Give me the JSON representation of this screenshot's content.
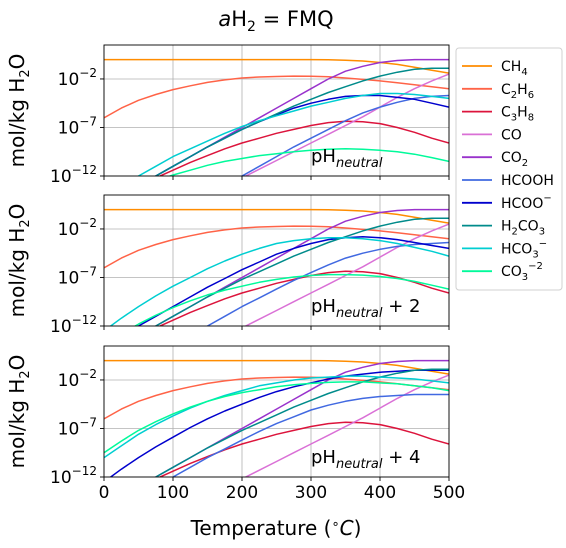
{
  "figure": {
    "title": "aH2 = FMQ",
    "title_parts": {
      "italic": "a",
      "main": "H",
      "sub": "2",
      "rest": " = FMQ"
    },
    "xlabel": "Temperature (°C)",
    "ylabel": "mol/kg H2O"
  },
  "chart_data": [
    {
      "type": "line",
      "annotation": "pHneutral",
      "xlim": [
        0,
        500
      ],
      "ylim_log10": [
        -12,
        1.5
      ],
      "yscale": "log",
      "x_ticks": [
        0,
        100,
        200,
        300,
        400,
        500
      ],
      "y_ticks_log10": [
        -12,
        -7,
        -2
      ],
      "grid": true,
      "x": [
        0,
        25,
        50,
        75,
        100,
        125,
        150,
        175,
        200,
        225,
        250,
        275,
        300,
        325,
        350,
        375,
        400,
        425,
        450,
        475,
        500
      ],
      "series": [
        {
          "name": "CH4",
          "color": "#ff8c00",
          "log10_values": [
            0,
            0,
            0,
            0,
            0,
            0,
            0,
            0,
            0,
            0,
            0,
            0,
            0,
            -0.03,
            -0.07,
            -0.15,
            -0.3,
            -0.5,
            -0.8,
            -1.1,
            -1.4
          ]
        },
        {
          "name": "C2H6",
          "color": "#ff6347",
          "log10_values": [
            -6,
            -5.0,
            -4.2,
            -3.6,
            -3.1,
            -2.7,
            -2.35,
            -2.1,
            -1.9,
            -1.8,
            -1.75,
            -1.7,
            -1.72,
            -1.78,
            -1.9,
            -2.05,
            -2.2,
            -2.4,
            -2.6,
            -2.8,
            -3.0
          ]
        },
        {
          "name": "C3H8",
          "color": "#dc143c",
          "log10_values": [
            -15,
            -14,
            -13,
            -12.2,
            -11.4,
            -10.6,
            -9.9,
            -9.2,
            -8.6,
            -8.1,
            -7.6,
            -7.2,
            -6.8,
            -6.5,
            -6.35,
            -6.4,
            -6.6,
            -7.0,
            -7.5,
            -8.1,
            -8.6
          ]
        },
        {
          "name": "CO",
          "color": "#da70d6",
          "log10_values": [
            -20,
            -19,
            -18,
            -17,
            -16,
            -15,
            -14,
            -13.1,
            -12.2,
            -11.3,
            -10.4,
            -9.5,
            -8.6,
            -7.7,
            -6.8,
            -5.9,
            -4.9,
            -3.9,
            -3.0,
            -2.2,
            -1.5
          ]
        },
        {
          "name": "CO2",
          "color": "#9932cc",
          "log10_values": [
            -15,
            -14,
            -13,
            -12,
            -11,
            -10,
            -9,
            -8,
            -7,
            -6.0,
            -5.0,
            -4.0,
            -3.0,
            -2.0,
            -1.2,
            -0.7,
            -0.3,
            -0.1,
            0,
            0,
            0
          ]
        },
        {
          "name": "HCOOH",
          "color": "#4169e1",
          "log10_values": [
            -20,
            -19,
            -18,
            -17,
            -16,
            -15,
            -14,
            -13,
            -12,
            -11,
            -10,
            -9,
            -8.1,
            -7.2,
            -6.3,
            -5.5,
            -4.9,
            -4.4,
            -4.0,
            -3.8,
            -3.7
          ]
        },
        {
          "name": "HCOO-",
          "color": "#0000cd",
          "log10_values": [
            -15,
            -14,
            -13,
            -12,
            -11,
            -10,
            -9,
            -8.1,
            -7.2,
            -6.4,
            -5.7,
            -5.0,
            -4.5,
            -4.1,
            -3.8,
            -3.7,
            -3.7,
            -3.9,
            -4.1,
            -4.5,
            -4.9
          ]
        },
        {
          "name": "H2CO3",
          "color": "#008b8b",
          "log10_values": [
            -15,
            -14,
            -13,
            -12,
            -11,
            -10,
            -9,
            -8.1,
            -7.2,
            -6.4,
            -5.6,
            -4.8,
            -4.1,
            -3.4,
            -2.8,
            -2.2,
            -1.7,
            -1.3,
            -1.0,
            -0.9,
            -0.9
          ]
        },
        {
          "name": "HCO3-",
          "color": "#00ced1",
          "log10_values": [
            -14,
            -13,
            -12,
            -11,
            -10,
            -9.2,
            -8.4,
            -7.6,
            -6.9,
            -6.3,
            -5.8,
            -5.3,
            -4.8,
            -4.4,
            -4.0,
            -3.7,
            -3.5,
            -3.5,
            -3.6,
            -3.8,
            -4.0
          ]
        },
        {
          "name": "CO3-2",
          "color": "#00fa9a",
          "log10_values": [
            -15,
            -14,
            -13.2,
            -12.5,
            -11.9,
            -11.4,
            -10.9,
            -10.5,
            -10.2,
            -9.9,
            -9.7,
            -9.5,
            -9.35,
            -9.25,
            -9.2,
            -9.25,
            -9.35,
            -9.5,
            -9.75,
            -10.1,
            -10.5
          ]
        }
      ]
    },
    {
      "type": "line",
      "annotation": "pHneutral + 2",
      "xlim": [
        0,
        500
      ],
      "ylim_log10": [
        -12,
        1.5
      ],
      "yscale": "log",
      "x_ticks": [
        0,
        100,
        200,
        300,
        400,
        500
      ],
      "y_ticks_log10": [
        -12,
        -7,
        -2
      ],
      "grid": true,
      "x": [
        0,
        25,
        50,
        75,
        100,
        125,
        150,
        175,
        200,
        225,
        250,
        275,
        300,
        325,
        350,
        375,
        400,
        425,
        450,
        475,
        500
      ],
      "series": [
        {
          "name": "CH4",
          "color": "#ff8c00",
          "log10_values": [
            0,
            0,
            0,
            0,
            0,
            0,
            0,
            0,
            0,
            0,
            0,
            0,
            0,
            -0.03,
            -0.07,
            -0.15,
            -0.3,
            -0.5,
            -0.8,
            -1.1,
            -1.4
          ]
        },
        {
          "name": "C2H6",
          "color": "#ff6347",
          "log10_values": [
            -6,
            -5.0,
            -4.2,
            -3.6,
            -3.1,
            -2.7,
            -2.35,
            -2.1,
            -1.9,
            -1.8,
            -1.75,
            -1.7,
            -1.72,
            -1.78,
            -1.9,
            -2.05,
            -2.2,
            -2.4,
            -2.6,
            -2.8,
            -3.0
          ]
        },
        {
          "name": "C3H8",
          "color": "#dc143c",
          "log10_values": [
            -15,
            -14,
            -13,
            -12.2,
            -11.4,
            -10.6,
            -9.9,
            -9.2,
            -8.6,
            -8.1,
            -7.6,
            -7.2,
            -6.8,
            -6.5,
            -6.35,
            -6.4,
            -6.6,
            -7.0,
            -7.5,
            -8.1,
            -8.6
          ]
        },
        {
          "name": "CO",
          "color": "#da70d6",
          "log10_values": [
            -20,
            -19,
            -18,
            -17,
            -16,
            -15,
            -14,
            -13.1,
            -12.2,
            -11.3,
            -10.4,
            -9.5,
            -8.6,
            -7.7,
            -6.8,
            -5.9,
            -4.9,
            -3.9,
            -3.0,
            -2.2,
            -1.5
          ]
        },
        {
          "name": "CO2",
          "color": "#9932cc",
          "log10_values": [
            -15,
            -14,
            -13,
            -12,
            -11,
            -10,
            -9,
            -8,
            -7,
            -6.0,
            -5.0,
            -4.0,
            -3.0,
            -2.0,
            -1.2,
            -0.7,
            -0.3,
            -0.1,
            0,
            0,
            0
          ]
        },
        {
          "name": "HCOOH",
          "color": "#4169e1",
          "log10_values": [
            -18,
            -17,
            -16,
            -15,
            -14,
            -13,
            -12,
            -11,
            -10,
            -9.1,
            -8.2,
            -7.3,
            -6.5,
            -5.7,
            -5.0,
            -4.5,
            -4.1,
            -3.8,
            -3.6,
            -3.5,
            -3.4
          ]
        },
        {
          "name": "HCOO-",
          "color": "#0000cd",
          "log10_values": [
            -14,
            -13,
            -12,
            -11,
            -10,
            -9,
            -8,
            -7.1,
            -6.2,
            -5.4,
            -4.6,
            -4.0,
            -3.5,
            -3.1,
            -2.9,
            -2.8,
            -2.9,
            -3.1,
            -3.4,
            -3.7,
            -4.0
          ]
        },
        {
          "name": "H2CO3",
          "color": "#008b8b",
          "log10_values": [
            -15,
            -14,
            -13,
            -12,
            -11,
            -10,
            -9,
            -8.1,
            -7.2,
            -6.4,
            -5.6,
            -4.8,
            -4.1,
            -3.4,
            -2.8,
            -2.2,
            -1.7,
            -1.3,
            -1.0,
            -0.9,
            -0.9
          ]
        },
        {
          "name": "HCO3-",
          "color": "#00ced1",
          "log10_values": [
            -12.5,
            -11.2,
            -10,
            -8.9,
            -7.9,
            -7.0,
            -6.1,
            -5.3,
            -4.6,
            -4.0,
            -3.5,
            -3.2,
            -3.0,
            -2.9,
            -2.9,
            -3.0,
            -3.2,
            -3.5,
            -3.9,
            -4.3,
            -4.8
          ]
        },
        {
          "name": "CO3-2",
          "color": "#00fa9a",
          "log10_values": [
            -14,
            -12.8,
            -11.8,
            -10.9,
            -10.1,
            -9.4,
            -8.8,
            -8.3,
            -7.9,
            -7.5,
            -7.2,
            -6.95,
            -6.8,
            -6.7,
            -6.7,
            -6.75,
            -6.9,
            -7.1,
            -7.4,
            -7.8,
            -8.2
          ]
        }
      ]
    },
    {
      "type": "line",
      "annotation": "pHneutral + 4",
      "xlim": [
        0,
        500
      ],
      "ylim_log10": [
        -12,
        1.5
      ],
      "yscale": "log",
      "x_ticks": [
        0,
        100,
        200,
        300,
        400,
        500
      ],
      "y_ticks_log10": [
        -12,
        -7,
        -2
      ],
      "grid": true,
      "x": [
        0,
        25,
        50,
        75,
        100,
        125,
        150,
        175,
        200,
        225,
        250,
        275,
        300,
        325,
        350,
        375,
        400,
        425,
        450,
        475,
        500
      ],
      "series": [
        {
          "name": "CH4",
          "color": "#ff8c00",
          "log10_values": [
            0,
            0,
            0,
            0,
            0,
            0,
            0,
            0,
            0,
            0,
            0,
            0,
            0,
            -0.03,
            -0.07,
            -0.15,
            -0.3,
            -0.5,
            -0.8,
            -1.1,
            -1.4
          ]
        },
        {
          "name": "C2H6",
          "color": "#ff6347",
          "log10_values": [
            -6,
            -5.0,
            -4.2,
            -3.6,
            -3.1,
            -2.7,
            -2.35,
            -2.1,
            -1.9,
            -1.8,
            -1.75,
            -1.7,
            -1.72,
            -1.78,
            -1.9,
            -2.05,
            -2.2,
            -2.4,
            -2.6,
            -2.8,
            -3.0
          ]
        },
        {
          "name": "C3H8",
          "color": "#dc143c",
          "log10_values": [
            -15,
            -14,
            -13,
            -12.2,
            -11.4,
            -10.6,
            -9.9,
            -9.2,
            -8.6,
            -8.1,
            -7.6,
            -7.2,
            -6.8,
            -6.5,
            -6.35,
            -6.4,
            -6.6,
            -7.0,
            -7.5,
            -8.1,
            -8.6
          ]
        },
        {
          "name": "CO",
          "color": "#da70d6",
          "log10_values": [
            -20,
            -19,
            -18,
            -17,
            -16,
            -15,
            -14,
            -13.1,
            -12.2,
            -11.3,
            -10.4,
            -9.5,
            -8.6,
            -7.7,
            -6.8,
            -5.9,
            -4.9,
            -3.9,
            -3.0,
            -2.2,
            -1.5
          ]
        },
        {
          "name": "CO2",
          "color": "#9932cc",
          "log10_values": [
            -15,
            -14,
            -13,
            -12,
            -11,
            -10,
            -9,
            -8,
            -7,
            -6.0,
            -5.0,
            -4.0,
            -3.0,
            -2.0,
            -1.2,
            -0.7,
            -0.3,
            -0.1,
            0,
            0,
            0
          ]
        },
        {
          "name": "HCOOH",
          "color": "#4169e1",
          "log10_values": [
            -16,
            -15,
            -14,
            -13,
            -12,
            -11,
            -10,
            -9.1,
            -8.2,
            -7.3,
            -6.5,
            -5.8,
            -5.1,
            -4.6,
            -4.2,
            -3.9,
            -3.7,
            -3.6,
            -3.5,
            -3.5,
            -3.5
          ]
        },
        {
          "name": "HCOO-",
          "color": "#0000cd",
          "log10_values": [
            -12.5,
            -11.2,
            -10,
            -8.9,
            -7.9,
            -6.9,
            -6.0,
            -5.2,
            -4.5,
            -3.8,
            -3.2,
            -2.7,
            -2.3,
            -1.9,
            -1.6,
            -1.4,
            -1.2,
            -1.1,
            -1.0,
            -1.0,
            -1.0
          ]
        },
        {
          "name": "H2CO3",
          "color": "#008b8b",
          "log10_values": [
            -15,
            -14,
            -13,
            -12,
            -11,
            -10,
            -9,
            -8.1,
            -7.2,
            -6.4,
            -5.6,
            -4.8,
            -4.1,
            -3.4,
            -2.8,
            -2.2,
            -1.7,
            -1.3,
            -1.0,
            -0.9,
            -0.9
          ]
        },
        {
          "name": "HCO3-",
          "color": "#00ced1",
          "log10_values": [
            -10,
            -8.8,
            -7.6,
            -6.6,
            -5.7,
            -4.9,
            -4.2,
            -3.6,
            -3.1,
            -2.6,
            -2.3,
            -2.0,
            -1.8,
            -1.7,
            -1.6,
            -1.6,
            -1.7,
            -1.8,
            -1.9,
            -2.1,
            -2.3
          ]
        },
        {
          "name": "CO3-2",
          "color": "#00fa9a",
          "log10_values": [
            -9.5,
            -8.3,
            -7.2,
            -6.3,
            -5.5,
            -4.8,
            -4.2,
            -3.7,
            -3.3,
            -3.0,
            -2.7,
            -2.5,
            -2.35,
            -2.25,
            -2.2,
            -2.2,
            -2.3,
            -2.4,
            -2.6,
            -2.8,
            -3.1
          ]
        }
      ]
    }
  ],
  "legend": {
    "placement": "right",
    "entries": [
      {
        "key": "CH4",
        "base": "CH",
        "sub": "4",
        "sup": "",
        "color": "#ff8c00"
      },
      {
        "key": "C2H6",
        "base": "C",
        "sub": "2",
        "mid": "H",
        "sub2": "6",
        "sup": "",
        "color": "#ff6347"
      },
      {
        "key": "C3H8",
        "base": "C",
        "sub": "3",
        "mid": "H",
        "sub2": "8",
        "sup": "",
        "color": "#dc143c"
      },
      {
        "key": "CO",
        "base": "CO",
        "sub": "",
        "sup": "",
        "color": "#da70d6"
      },
      {
        "key": "CO2",
        "base": "CO",
        "sub": "2",
        "sup": "",
        "color": "#9932cc"
      },
      {
        "key": "HCOOH",
        "base": "HCOOH",
        "sub": "",
        "sup": "",
        "color": "#4169e1"
      },
      {
        "key": "HCOO-",
        "base": "HCOO",
        "sub": "",
        "sup": "−",
        "color": "#0000cd"
      },
      {
        "key": "H2CO3",
        "base": "H",
        "sub": "2",
        "mid": "CO",
        "sub2": "3",
        "sup": "",
        "color": "#008b8b"
      },
      {
        "key": "HCO3-",
        "base": "HCO",
        "sub": "3",
        "sup": "−",
        "color": "#00ced1"
      },
      {
        "key": "CO3-2",
        "base": "CO",
        "sub": "3",
        "sup": "−2",
        "color": "#00fa9a"
      }
    ]
  }
}
